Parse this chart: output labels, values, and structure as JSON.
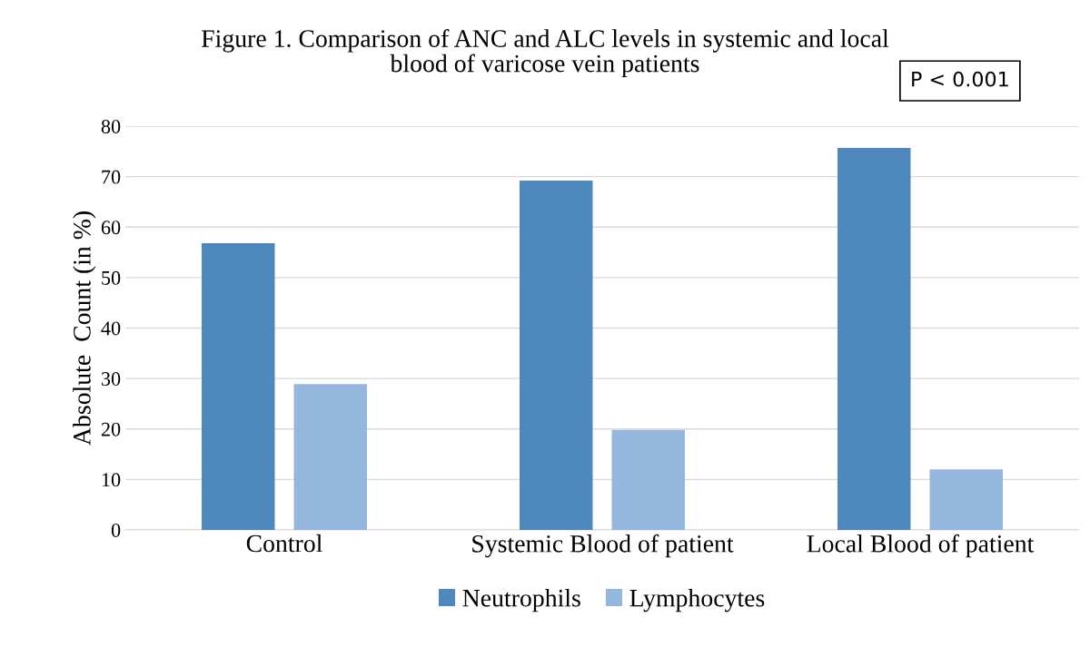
{
  "chart_data": {
    "type": "bar",
    "title": "Figure 1. Comparison of ANC and ALC levels in systemic and local\nblood of varicose vein patients",
    "ylabel": "Absolute  Count (in %)",
    "categories": [
      "Control",
      "Systemic Blood of patient",
      "Local Blood of patient"
    ],
    "series": [
      {
        "name": "Neutrophils",
        "color": "#4f88bd",
        "values": [
          56.8,
          69.2,
          75.7
        ]
      },
      {
        "name": "Lymphocytes",
        "color": "#95b7de",
        "values": [
          28.9,
          19.8,
          12.0
        ]
      }
    ],
    "ylim": [
      0,
      80
    ],
    "yticks": [
      0,
      10,
      20,
      30,
      40,
      50,
      60,
      70,
      80
    ],
    "grid": "y",
    "legend": "bottom",
    "annotations": [
      "P < 0.001"
    ]
  }
}
